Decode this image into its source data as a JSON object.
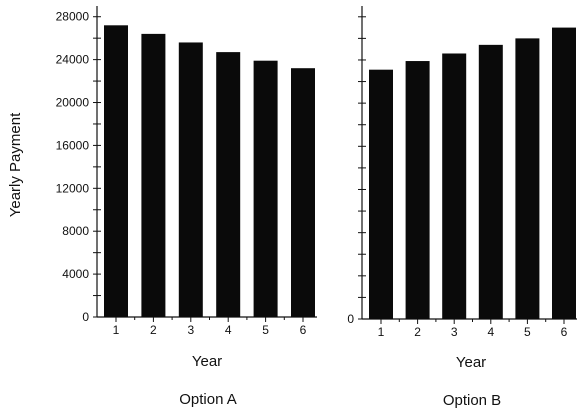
{
  "chart_data": [
    {
      "type": "bar",
      "title": "",
      "caption": "Option A",
      "xlabel": "Year",
      "ylabel": "Yearly Payment",
      "categories": [
        "1",
        "2",
        "3",
        "4",
        "5",
        "6"
      ],
      "values": [
        27200,
        26400,
        25600,
        24700,
        23900,
        23200
      ],
      "ylim": [
        0,
        29000
      ],
      "yticks": [
        "0",
        "4000",
        "8000",
        "12000",
        "16000",
        "20000",
        "24000",
        "28000"
      ],
      "y_minor_step": 2000,
      "grid": false
    },
    {
      "type": "bar",
      "title": "",
      "caption": "Option B",
      "xlabel": "Year",
      "ylabel": "",
      "categories": [
        "1",
        "2",
        "3",
        "4",
        "5",
        "6"
      ],
      "values": [
        23100,
        23900,
        24600,
        25400,
        26000,
        27000
      ],
      "ylim": [
        0,
        29000
      ],
      "yticks": [
        "0"
      ],
      "y_minor_step": 2000,
      "grid": false
    }
  ],
  "colors": {
    "bar": "#0a0a0a",
    "axis": "#111111",
    "background": "#ffffff"
  }
}
